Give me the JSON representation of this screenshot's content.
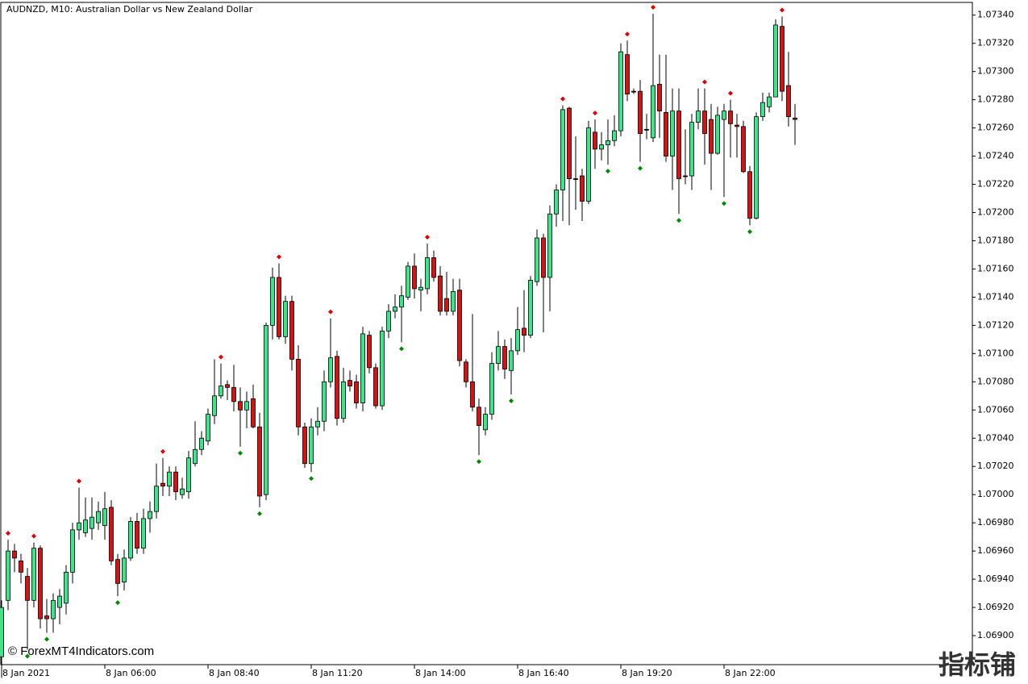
{
  "chart_data": {
    "type": "candlestick",
    "title": "AUDNZD, M10:  Australian Dollar vs New Zealand Dollar",
    "watermark": "© ForexMT4Indicators.com",
    "corner_mark": "指标铺",
    "up_color": "#3fe48a",
    "down_color": "#d41414",
    "fractal_up_color": "#e00000",
    "fractal_down_color": "#008a00",
    "ylim": [
      1.0688,
      1.07349
    ],
    "yticks": [
      {
        "value": 1.069,
        "label": "1.06900"
      },
      {
        "value": 1.0692,
        "label": "1.06920"
      },
      {
        "value": 1.0694,
        "label": "1.06940"
      },
      {
        "value": 1.0696,
        "label": "1.06960"
      },
      {
        "value": 1.0698,
        "label": "1.06980"
      },
      {
        "value": 1.07,
        "label": "1.07000"
      },
      {
        "value": 1.0702,
        "label": "1.07020"
      },
      {
        "value": 1.0704,
        "label": "1.07040"
      },
      {
        "value": 1.0706,
        "label": "1.07060"
      },
      {
        "value": 1.0708,
        "label": "1.07080"
      },
      {
        "value": 1.071,
        "label": "1.07100"
      },
      {
        "value": 1.0712,
        "label": "1.07120"
      },
      {
        "value": 1.0714,
        "label": "1.07140"
      },
      {
        "value": 1.0716,
        "label": "1.07160"
      },
      {
        "value": 1.0718,
        "label": "1.07180"
      },
      {
        "value": 1.072,
        "label": "1.07200"
      },
      {
        "value": 1.0722,
        "label": "1.07220"
      },
      {
        "value": 1.0724,
        "label": "1.07240"
      },
      {
        "value": 1.0726,
        "label": "1.07260"
      },
      {
        "value": 1.0728,
        "label": "1.07280"
      },
      {
        "value": 1.073,
        "label": "1.07300"
      },
      {
        "value": 1.0732,
        "label": "1.07320"
      },
      {
        "value": 1.0734,
        "label": "1.07340"
      }
    ],
    "categories": [
      "8 Jan 2021",
      null,
      null,
      null,
      null,
      null,
      null,
      null,
      null,
      null,
      null,
      null,
      null,
      null,
      null,
      null,
      "8 Jan 06:00",
      null,
      null,
      null,
      null,
      null,
      null,
      null,
      null,
      null,
      null,
      null,
      null,
      null,
      null,
      null,
      "8 Jan 08:40",
      null,
      null,
      null,
      null,
      null,
      null,
      null,
      null,
      null,
      null,
      null,
      null,
      null,
      null,
      null,
      "8 Jan 11:20",
      null,
      null,
      null,
      null,
      null,
      null,
      null,
      null,
      null,
      null,
      null,
      null,
      null,
      null,
      null,
      "8 Jan 14:00",
      null,
      null,
      null,
      null,
      null,
      null,
      null,
      null,
      null,
      null,
      null,
      null,
      null,
      null,
      null,
      "8 Jan 16:40",
      null,
      null,
      null,
      null,
      null,
      null,
      null,
      null,
      null,
      null,
      null,
      null,
      null,
      null,
      null,
      "8 Jan 19:20",
      null,
      null,
      null,
      null,
      null,
      null,
      null,
      null,
      null,
      null,
      null,
      null,
      null,
      null,
      null,
      "8 Jan 22:00",
      null,
      null,
      null,
      null,
      null,
      null,
      null,
      null,
      null,
      null,
      null
    ],
    "open": [
      1.06885,
      1.06925,
      1.0696,
      1.06953,
      1.06942,
      1.06925,
      1.06962,
      1.06914,
      1.06912,
      1.0692,
      1.06923,
      1.06945,
      1.06975,
      1.06973,
      1.06976,
      1.0698,
      1.06978,
      1.06991,
      1.06954,
      1.06938,
      1.06955,
      1.06981,
      1.06962,
      1.06983,
      1.06988,
      1.07008,
      1.07006,
      1.07016,
      1.07,
      1.07002,
      1.07022,
      1.07032,
      1.07038,
      1.07056,
      1.0707,
      1.07078,
      1.07076,
      1.07066,
      1.0706,
      1.07068,
      1.07048,
      1.07,
      1.0712,
      1.07154,
      1.07112,
      1.07137,
      1.07096,
      1.07048,
      1.07022,
      1.07048,
      1.07052,
      1.0708,
      1.07098,
      1.07054,
      1.07081,
      1.0708,
      1.07065,
      1.07113,
      1.0709,
      1.07063,
      1.07116,
      1.0713,
      1.07133,
      1.0714,
      1.07162,
      1.07145,
      1.07146,
      1.07168,
      1.07155,
      1.07139,
      1.0713,
      1.07145,
      1.07094,
      1.0708,
      1.07062,
      1.07046,
      1.07057,
      1.07093,
      1.07105,
      1.07088,
      1.07102,
      1.07118,
      1.07113,
      1.07151,
      1.07182,
      1.07154,
      1.07199,
      1.07216,
      1.07274,
      1.07224,
      1.07226,
      1.07208,
      1.07257,
      1.07245,
      1.07248,
      1.07251,
      1.07258,
      1.07312,
      1.07286,
      1.07286,
      1.07259,
      1.07253,
      1.07291,
      1.07271,
      1.0724,
      1.07272,
      1.07226,
      1.07226,
      1.07264,
      1.07272,
      1.07266,
      1.07242,
      1.07266,
      1.07272,
      1.07262,
      1.07261,
      1.07229,
      1.07196,
      1.07268,
      1.07275,
      1.07282,
      1.07332,
      1.0729,
      1.07267
    ],
    "high": [
      1.06925,
      1.06968,
      1.06965,
      1.06958,
      1.06948,
      1.06966,
      1.06964,
      1.06926,
      1.0693,
      1.06933,
      1.0695,
      1.0698,
      1.07005,
      1.06998,
      1.06998,
      1.06995,
      1.07002,
      1.06996,
      1.06958,
      1.06961,
      1.06984,
      1.06987,
      1.0699,
      1.06995,
      1.07022,
      1.07026,
      1.0702,
      1.0702,
      1.07012,
      1.07031,
      1.07052,
      1.07045,
      1.07061,
      1.07096,
      1.07093,
      1.07081,
      1.07092,
      1.07076,
      1.07073,
      1.07078,
      1.07058,
      1.07122,
      1.07161,
      1.07164,
      1.07141,
      1.07141,
      1.07106,
      1.07051,
      1.07054,
      1.07062,
      1.07088,
      1.07125,
      1.07102,
      1.0709,
      1.07088,
      1.07085,
      1.07119,
      1.07116,
      1.07093,
      1.07119,
      1.07135,
      1.07142,
      1.07148,
      1.07165,
      1.07171,
      1.07153,
      1.07178,
      1.07173,
      1.07162,
      1.07158,
      1.07153,
      1.07153,
      1.07096,
      1.07128,
      1.07068,
      1.07062,
      1.07101,
      1.07116,
      1.0711,
      1.07111,
      1.07133,
      1.07145,
      1.07155,
      1.07188,
      1.07185,
      1.07205,
      1.0722,
      1.07276,
      1.07275,
      1.07254,
      1.07231,
      1.07265,
      1.07266,
      1.07257,
      1.07266,
      1.07269,
      1.0732,
      1.07322,
      1.07288,
      1.07294,
      1.0727,
      1.07341,
      1.07312,
      1.07312,
      1.07288,
      1.07288,
      1.07259,
      1.0727,
      1.07288,
      1.07288,
      1.07277,
      1.07275,
      1.07277,
      1.0728,
      1.0727,
      1.07265,
      1.07233,
      1.07271,
      1.07285,
      1.07285,
      1.07337,
      1.07339,
      1.07314,
      1.07277
    ],
    "low": [
      1.0687,
      1.06918,
      1.06945,
      1.06937,
      1.0689,
      1.0692,
      1.06905,
      1.06902,
      1.06902,
      1.06908,
      1.06915,
      1.06937,
      1.06968,
      1.0697,
      1.06968,
      1.06975,
      1.06968,
      1.0695,
      1.06928,
      1.06932,
      1.06953,
      1.06958,
      1.06958,
      1.06973,
      1.06983,
      1.06999,
      1.06999,
      1.06996,
      1.06997,
      1.06997,
      1.0702,
      1.07028,
      1.07035,
      1.0705,
      1.07068,
      1.07067,
      1.07059,
      1.07034,
      1.07047,
      1.07047,
      1.06991,
      1.06996,
      1.0711,
      1.0711,
      1.07107,
      1.07088,
      1.07042,
      1.07019,
      1.07016,
      1.07042,
      1.07045,
      1.07076,
      1.07049,
      1.07051,
      1.07073,
      1.07061,
      1.07059,
      1.07086,
      1.07061,
      1.0706,
      1.07111,
      1.07125,
      1.07108,
      1.07138,
      1.07139,
      1.0713,
      1.07142,
      1.07151,
      1.07127,
      1.07127,
      1.07127,
      1.07091,
      1.07076,
      1.07059,
      1.07028,
      1.07042,
      1.07053,
      1.07088,
      1.07082,
      1.07071,
      1.07099,
      1.07101,
      1.07111,
      1.07148,
      1.07115,
      1.0713,
      1.0719,
      1.07194,
      1.07191,
      1.07202,
      1.07194,
      1.07206,
      1.07231,
      1.07237,
      1.07234,
      1.07247,
      1.07254,
      1.07279,
      1.07284,
      1.07236,
      1.07252,
      1.0725,
      1.07253,
      1.07236,
      1.07216,
      1.07199,
      1.0722,
      1.07216,
      1.07259,
      1.07234,
      1.07216,
      1.07241,
      1.07211,
      1.07239,
      1.07239,
      1.07228,
      1.07191,
      1.07195,
      1.07265,
      1.07271,
      1.07282,
      1.07279,
      1.07261,
      1.07248
    ],
    "close": [
      1.0692,
      1.0696,
      1.06955,
      1.06945,
      1.06925,
      1.06962,
      1.06912,
      1.06912,
      1.06925,
      1.06928,
      1.06945,
      1.06975,
      1.0698,
      1.06982,
      1.06984,
      1.06988,
      1.0699,
      1.06953,
      1.06937,
      1.06955,
      1.06981,
      1.06962,
      1.06983,
      1.06988,
      1.07006,
      1.07006,
      1.07016,
      1.07002,
      1.07004,
      1.07026,
      1.07032,
      1.0704,
      1.07057,
      1.0707,
      1.07077,
      1.07076,
      1.07066,
      1.0706,
      1.07066,
      1.07048,
      1.06999,
      1.0712,
      1.07154,
      1.07112,
      1.07137,
      1.07096,
      1.07048,
      1.07022,
      1.07048,
      1.07052,
      1.0708,
      1.07097,
      1.07054,
      1.0708,
      1.07077,
      1.07065,
      1.07114,
      1.0709,
      1.07063,
      1.07116,
      1.0713,
      1.07133,
      1.07141,
      1.07162,
      1.07146,
      1.07147,
      1.07168,
      1.07154,
      1.0713,
      1.0713,
      1.07144,
      1.07095,
      1.0708,
      1.07062,
      1.07049,
      1.07057,
      1.07093,
      1.07105,
      1.07089,
      1.07102,
      1.07117,
      1.07113,
      1.07152,
      1.07182,
      1.07154,
      1.07199,
      1.07216,
      1.07273,
      1.07224,
      1.07224,
      1.07208,
      1.0726,
      1.07245,
      1.07248,
      1.07251,
      1.07258,
      1.07314,
      1.07284,
      1.07286,
      1.07256,
      1.07259,
      1.0729,
      1.07272,
      1.0724,
      1.07272,
      1.07224,
      1.07226,
      1.07264,
      1.07272,
      1.07256,
      1.07242,
      1.07269,
      1.07272,
      1.07263,
      1.07261,
      1.07229,
      1.07196,
      1.07268,
      1.07278,
      1.07282,
      1.07333,
      1.07286,
      1.07268,
      1.07266
    ],
    "fractals_up": [
      null,
      1.06968,
      null,
      null,
      null,
      1.06966,
      null,
      null,
      null,
      null,
      null,
      null,
      1.07005,
      null,
      null,
      null,
      null,
      null,
      null,
      null,
      null,
      null,
      null,
      null,
      null,
      1.07026,
      null,
      null,
      null,
      null,
      null,
      null,
      null,
      null,
      1.07093,
      null,
      null,
      null,
      null,
      null,
      null,
      null,
      null,
      1.07164,
      null,
      null,
      null,
      null,
      null,
      null,
      null,
      1.07125,
      null,
      null,
      null,
      null,
      null,
      null,
      null,
      null,
      null,
      null,
      null,
      null,
      null,
      null,
      1.07178,
      null,
      null,
      null,
      null,
      null,
      null,
      null,
      null,
      null,
      null,
      null,
      null,
      null,
      null,
      null,
      null,
      null,
      null,
      null,
      null,
      1.07276,
      null,
      null,
      null,
      null,
      1.07266,
      null,
      null,
      null,
      null,
      1.07322,
      null,
      null,
      null,
      1.07341,
      null,
      null,
      null,
      null,
      null,
      null,
      null,
      1.07288,
      null,
      null,
      null,
      1.0728,
      null,
      null,
      null,
      null,
      null,
      null,
      null,
      1.07339,
      null,
      null
    ],
    "fractals_down": [
      null,
      null,
      null,
      null,
      1.0689,
      null,
      null,
      1.06902,
      null,
      null,
      null,
      null,
      null,
      null,
      null,
      null,
      null,
      null,
      1.06928,
      null,
      null,
      null,
      null,
      null,
      null,
      null,
      null,
      null,
      null,
      null,
      null,
      null,
      null,
      null,
      null,
      null,
      null,
      1.07034,
      null,
      null,
      1.06991,
      null,
      null,
      null,
      null,
      null,
      null,
      null,
      1.07016,
      null,
      null,
      null,
      null,
      null,
      null,
      null,
      null,
      null,
      null,
      null,
      null,
      null,
      1.07108,
      null,
      null,
      null,
      null,
      null,
      null,
      null,
      null,
      null,
      null,
      null,
      1.07028,
      null,
      null,
      null,
      null,
      1.07071,
      null,
      null,
      null,
      null,
      null,
      null,
      null,
      null,
      null,
      null,
      null,
      null,
      null,
      null,
      1.07234,
      null,
      null,
      null,
      null,
      1.07236,
      null,
      null,
      null,
      null,
      null,
      1.07199,
      null,
      null,
      null,
      null,
      null,
      null,
      1.07211,
      null,
      null,
      null,
      1.07191,
      null,
      null,
      null,
      null,
      null,
      null,
      null
    ]
  }
}
